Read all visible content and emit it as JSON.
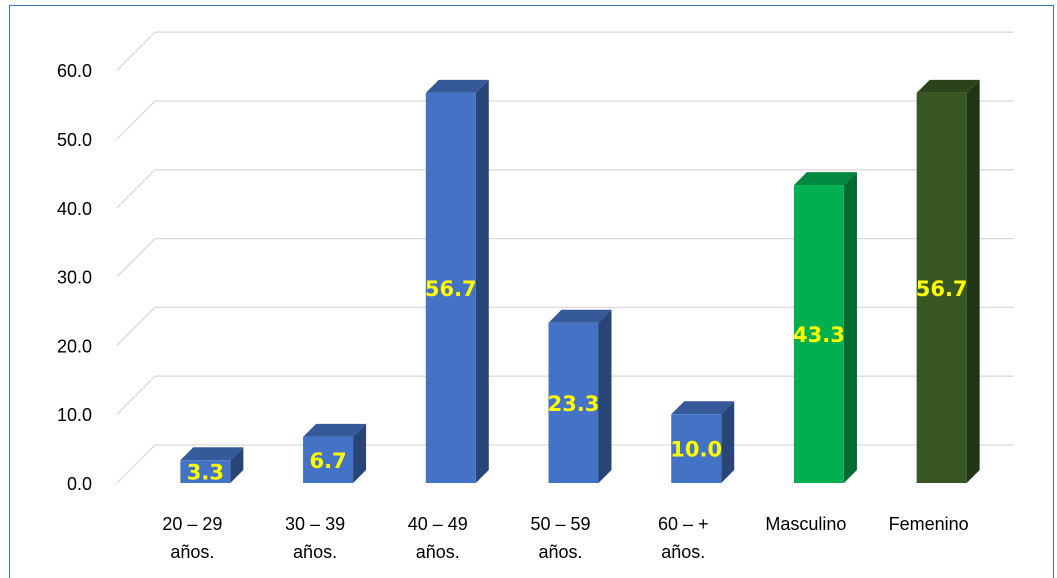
{
  "chart_data": {
    "type": "bar",
    "categories": [
      [
        "20 – 29",
        "años."
      ],
      [
        "30 – 39",
        "años."
      ],
      [
        "40 – 49",
        "años."
      ],
      [
        "50 – 59",
        "años."
      ],
      [
        "60 – +",
        "años."
      ],
      [
        "Masculino"
      ],
      [
        "Femenino"
      ]
    ],
    "values": [
      3.3,
      6.7,
      56.7,
      23.3,
      10.0,
      43.3,
      56.7
    ],
    "data_labels": [
      "3.3",
      "6.7",
      "56.7",
      "23.3",
      "10.0",
      "43.3",
      "56.7"
    ],
    "colors": [
      "#4472c4",
      "#4472c4",
      "#4472c4",
      "#4472c4",
      "#4472c4",
      "#00b050",
      "#375623"
    ],
    "y_ticks": [
      "0.0",
      "10.0",
      "20.0",
      "30.0",
      "40.0",
      "50.0",
      "60.0"
    ],
    "ylim": [
      0,
      60
    ],
    "grid": true,
    "legend": false,
    "title": "",
    "xlabel": "",
    "ylabel": ""
  }
}
